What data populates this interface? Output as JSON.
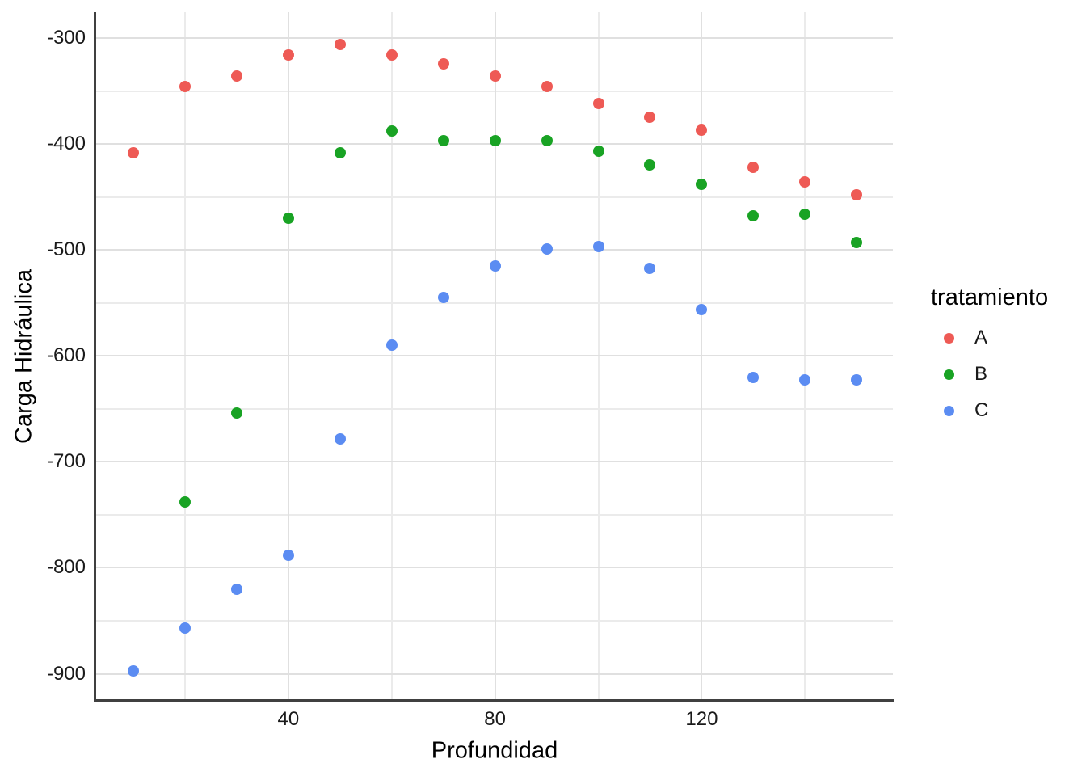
{
  "chart_data": {
    "type": "scatter",
    "title": "",
    "xlabel": "Profundidad",
    "ylabel": "Carga Hidráulica",
    "x_range": [
      2.8,
      157.0
    ],
    "y_range": [
      -925.5,
      -275.5
    ],
    "x_major_ticks": [
      40,
      80,
      120
    ],
    "x_minor_ticks": [
      20,
      60,
      100,
      140
    ],
    "y_major_ticks": [
      -300,
      -400,
      -500,
      -600,
      -700,
      -800,
      -900
    ],
    "y_minor_ticks": [
      -350,
      -450,
      -550,
      -650,
      -750,
      -850
    ],
    "grid": "major-and-minor",
    "legend_position": "right",
    "legend": {
      "title": "tratamiento",
      "items": [
        {
          "label": "A",
          "color": "#ee5a55"
        },
        {
          "label": "B",
          "color": "#19a324"
        },
        {
          "label": "C",
          "color": "#5b8cf2"
        }
      ]
    },
    "series": [
      {
        "name": "A",
        "color": "#ee5a55",
        "points": [
          [
            10,
            -408
          ],
          [
            20,
            -346
          ],
          [
            30,
            -336
          ],
          [
            40,
            -316
          ],
          [
            50,
            -306
          ],
          [
            60,
            -316
          ],
          [
            70,
            -324
          ],
          [
            80,
            -336
          ],
          [
            90,
            -346
          ],
          [
            100,
            -362
          ],
          [
            110,
            -375
          ],
          [
            120,
            -387
          ],
          [
            130,
            -422
          ],
          [
            140,
            -436
          ],
          [
            150,
            -448
          ]
        ]
      },
      {
        "name": "B",
        "color": "#19a324",
        "points": [
          [
            20,
            -738
          ],
          [
            30,
            -654
          ],
          [
            40,
            -470
          ],
          [
            50,
            -408
          ],
          [
            60,
            -388
          ],
          [
            70,
            -397
          ],
          [
            80,
            -397
          ],
          [
            90,
            -397
          ],
          [
            100,
            -407
          ],
          [
            110,
            -420
          ],
          [
            120,
            -438
          ],
          [
            130,
            -468
          ],
          [
            140,
            -466
          ],
          [
            150,
            -493
          ]
        ]
      },
      {
        "name": "C",
        "color": "#5b8cf2",
        "points": [
          [
            10,
            -897
          ],
          [
            20,
            -857
          ],
          [
            30,
            -820
          ],
          [
            40,
            -788
          ],
          [
            50,
            -678
          ],
          [
            60,
            -590
          ],
          [
            70,
            -545
          ],
          [
            80,
            -515
          ],
          [
            90,
            -499
          ],
          [
            100,
            -497
          ],
          [
            110,
            -517
          ],
          [
            120,
            -556
          ],
          [
            130,
            -620
          ],
          [
            140,
            -623
          ],
          [
            150,
            -623
          ]
        ]
      }
    ],
    "colors": {
      "grid_major": "#e0e0e0",
      "grid_minor": "#ebebeb",
      "axis_line": "#404040",
      "tick_text": "#1a1a1a",
      "title_text": "#000000",
      "background": "#ffffff"
    }
  }
}
